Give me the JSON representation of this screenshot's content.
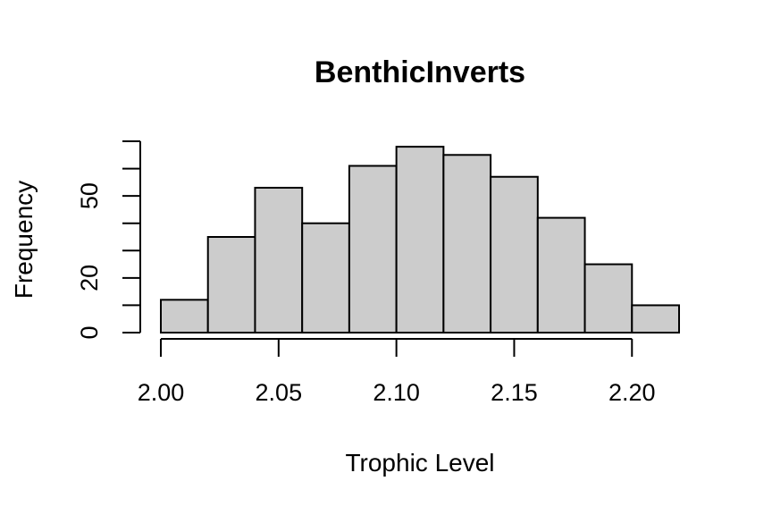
{
  "chart_data": {
    "type": "bar",
    "title": "BenthicInverts",
    "xlabel": "Trophic Level",
    "ylabel": "Frequency",
    "bins": [
      [
        2.0,
        2.02
      ],
      [
        2.02,
        2.04
      ],
      [
        2.04,
        2.06
      ],
      [
        2.06,
        2.08
      ],
      [
        2.08,
        2.1
      ],
      [
        2.1,
        2.12
      ],
      [
        2.12,
        2.14
      ],
      [
        2.14,
        2.16
      ],
      [
        2.16,
        2.18
      ],
      [
        2.18,
        2.2
      ],
      [
        2.2,
        2.22
      ]
    ],
    "values": [
      12,
      35,
      53,
      40,
      61,
      68,
      65,
      57,
      42,
      25,
      10
    ],
    "bar_fill": "#cccccc",
    "bar_stroke": "#000000",
    "xlim": [
      2.0,
      2.22
    ],
    "ylim": [
      0,
      70
    ],
    "x_ticks": [
      2.0,
      2.05,
      2.1,
      2.15,
      2.2
    ],
    "x_tick_labels": [
      "2.00",
      "2.05",
      "2.10",
      "2.15",
      "2.20"
    ],
    "y_ticks": [
      0,
      10,
      20,
      30,
      40,
      50,
      60,
      70
    ],
    "y_tick_labels": [
      "0",
      "20",
      "50"
    ],
    "y_labeled_ticks": [
      0,
      20,
      50
    ],
    "grid": false
  }
}
